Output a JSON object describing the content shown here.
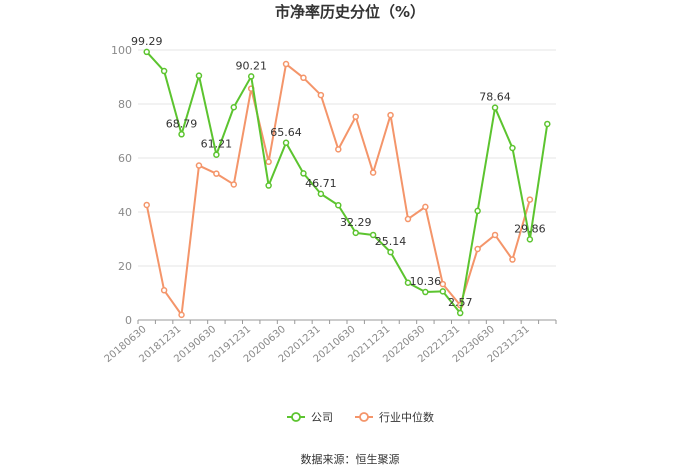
{
  "chart_data": {
    "type": "line",
    "title": "市净率历史分位（%）",
    "xlabel": "",
    "ylabel": "",
    "ylim": [
      0,
      100
    ],
    "yticks": [
      0,
      20,
      40,
      60,
      80,
      100
    ],
    "grid": true,
    "legend_position": "bottom",
    "x_tick_labels": [
      "20180630",
      "20181231",
      "20190630",
      "20191231",
      "20200630",
      "20201231",
      "20210630",
      "20211231",
      "20220630",
      "20221231",
      "20230630",
      "20231231"
    ],
    "series": [
      {
        "name": "公司",
        "color": "#5cc42f",
        "values": [
          99.29,
          92.2,
          68.79,
          90.5,
          61.21,
          78.8,
          90.21,
          49.8,
          65.64,
          54.3,
          46.71,
          42.5,
          32.29,
          31.5,
          25.14,
          13.8,
          10.36,
          10.6,
          2.57,
          40.4,
          78.64,
          63.7,
          29.86,
          72.6
        ],
        "labels": [
          {
            "index": 0,
            "text": "99.29"
          },
          {
            "index": 2,
            "text": "68.79"
          },
          {
            "index": 4,
            "text": "61.21"
          },
          {
            "index": 6,
            "text": "90.21"
          },
          {
            "index": 8,
            "text": "65.64"
          },
          {
            "index": 10,
            "text": "46.71"
          },
          {
            "index": 12,
            "text": "32.29"
          },
          {
            "index": 14,
            "text": "25.14"
          },
          {
            "index": 16,
            "text": "10.36"
          },
          {
            "index": 18,
            "text": "2.57"
          },
          {
            "index": 20,
            "text": "78.64"
          },
          {
            "index": 22,
            "text": "29.86"
          }
        ]
      },
      {
        "name": "行业中位数",
        "color": "#f4956a",
        "values": [
          42.6,
          11.0,
          1.9,
          57.2,
          54.2,
          50.2,
          85.7,
          58.6,
          94.8,
          89.7,
          83.3,
          63.2,
          75.3,
          54.6,
          75.9,
          37.4,
          41.9,
          13.3,
          5.5,
          26.3,
          31.5,
          22.4,
          44.6,
          null
        ]
      }
    ]
  },
  "source": "数据来源：恒生聚源"
}
